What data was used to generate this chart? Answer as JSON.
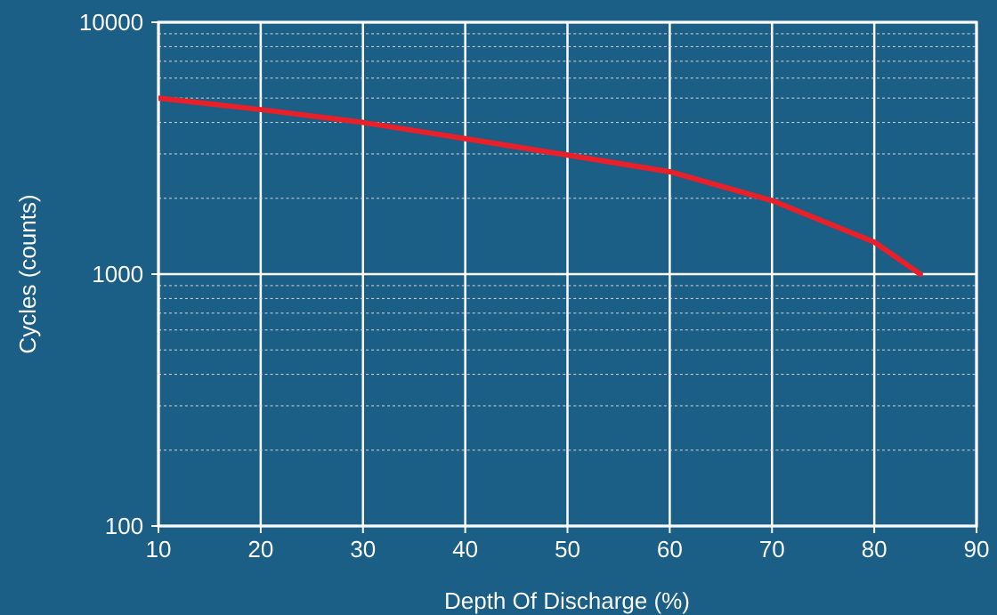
{
  "chart_data": {
    "type": "line",
    "xlabel": "Depth Of Discharge (%)",
    "ylabel": "Cycles (counts)",
    "x": [
      10,
      20,
      30,
      40,
      50,
      60,
      70,
      80,
      84.5
    ],
    "series": [
      {
        "color": "#e8202a",
        "values": [
          5000,
          4500,
          4000,
          3450,
          2970,
          2550,
          1960,
          1340,
          1000
        ]
      }
    ],
    "xlim": [
      10,
      90
    ],
    "ylim": [
      100,
      10000
    ],
    "xticks": [
      10,
      20,
      30,
      40,
      50,
      60,
      70,
      80,
      90
    ],
    "yticks": [
      100,
      1000,
      10000
    ],
    "log": "y",
    "grid": true,
    "marker": "none",
    "line_style": "solid"
  }
}
